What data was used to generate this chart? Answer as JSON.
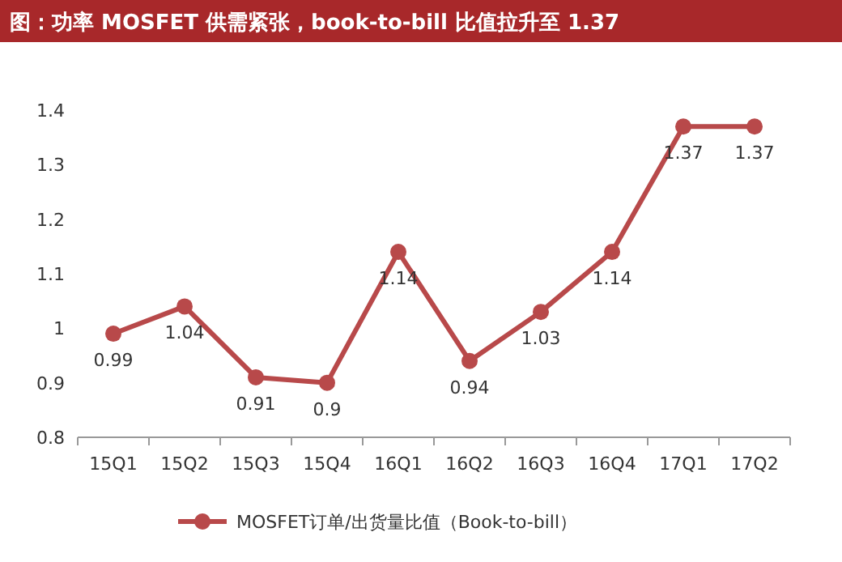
{
  "chart_data": {
    "type": "line",
    "title": "图：功率 MOSFET 供需紧张，book-to-bill 比值拉升至 1.37",
    "categories": [
      "15Q1",
      "15Q2",
      "15Q3",
      "15Q4",
      "16Q1",
      "16Q2",
      "16Q3",
      "16Q4",
      "17Q1",
      "17Q2"
    ],
    "series": [
      {
        "name": "MOSFET订单/出货量比值（Book-to-bill）",
        "color": "#b8494a",
        "values": [
          0.99,
          1.04,
          0.91,
          0.9,
          1.14,
          0.94,
          1.03,
          1.14,
          1.37,
          1.37
        ]
      }
    ],
    "ylim": [
      0.8,
      1.4
    ],
    "yticks": [
      0.8,
      0.9,
      1,
      1.1,
      1.2,
      1.3,
      1.4
    ],
    "data_labels": true,
    "legend": "bottom",
    "marker": "circle",
    "line_style": "solid"
  }
}
